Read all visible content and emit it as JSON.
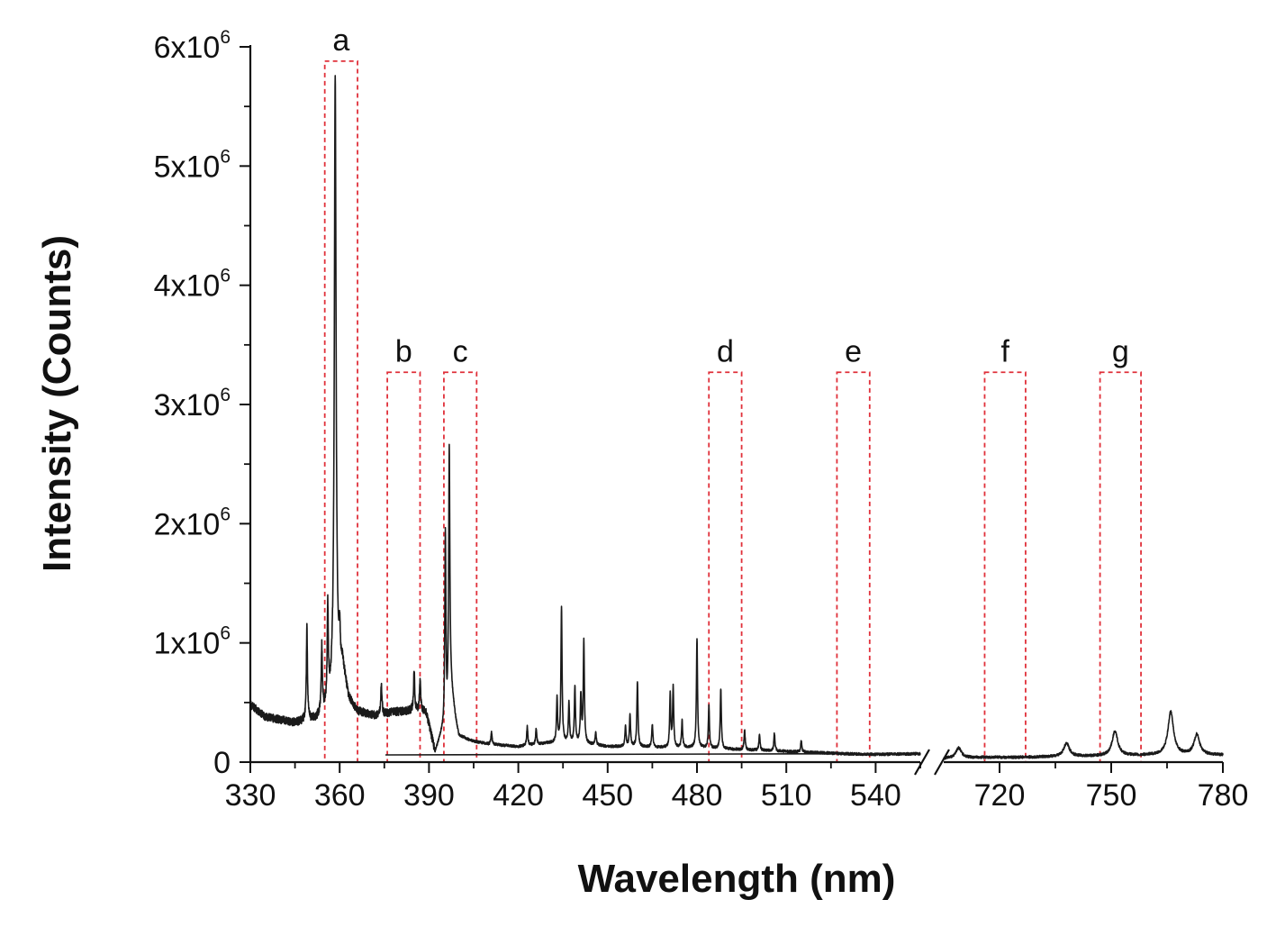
{
  "chart_data": {
    "type": "line",
    "title": "",
    "xlabel": "Wavelength (nm)",
    "ylabel": "Intensity (Counts)",
    "ylim": [
      0,
      6000000
    ],
    "axis_break": {
      "from": 555,
      "to": 705
    },
    "xlim_segments": [
      [
        330,
        555
      ],
      [
        705,
        780
      ]
    ],
    "x_ticks": [
      "330",
      "360",
      "390",
      "420",
      "450",
      "480",
      "510",
      "540",
      "720",
      "750",
      "780"
    ],
    "y_ticks": [
      {
        "value": 0,
        "mantissa": "0",
        "exponent": ""
      },
      {
        "value": 1000000,
        "mantissa": "1x10",
        "exponent": "6"
      },
      {
        "value": 2000000,
        "mantissa": "2x10",
        "exponent": "6"
      },
      {
        "value": 3000000,
        "mantissa": "3x10",
        "exponent": "6"
      },
      {
        "value": 4000000,
        "mantissa": "4x10",
        "exponent": "6"
      },
      {
        "value": 5000000,
        "mantissa": "5x10",
        "exponent": "6"
      },
      {
        "value": 6000000,
        "mantissa": "6x10",
        "exponent": "6"
      }
    ],
    "highlight_regions": [
      {
        "label": "a",
        "x_start": 355,
        "x_end": 366,
        "y_top": 5880000
      },
      {
        "label": "b",
        "x_start": 376,
        "x_end": 387,
        "y_top": 3270000
      },
      {
        "label": "c",
        "x_start": 395,
        "x_end": 406,
        "y_top": 3270000
      },
      {
        "label": "d",
        "x_start": 484,
        "x_end": 495,
        "y_top": 3270000
      },
      {
        "label": "e",
        "x_start": 527,
        "x_end": 538,
        "y_top": 3270000
      },
      {
        "label": "f",
        "x_start": 716,
        "x_end": 727,
        "y_top": 3270000
      },
      {
        "label": "g",
        "x_start": 747,
        "x_end": 758,
        "y_top": 3270000
      }
    ],
    "series": [
      {
        "baseline": [
          [
            330,
            480000
          ],
          [
            335,
            380000
          ],
          [
            345,
            330000
          ],
          [
            352,
            360000
          ],
          [
            356,
            450000
          ],
          [
            358,
            600000
          ],
          [
            361,
            800000
          ],
          [
            363,
            530000
          ],
          [
            366,
            420000
          ],
          [
            372,
            390000
          ],
          [
            378,
            420000
          ],
          [
            385,
            430000
          ],
          [
            389,
            420000
          ],
          [
            391,
            200000
          ],
          [
            392,
            80000
          ],
          [
            394,
            220000
          ],
          [
            396,
            300000
          ],
          [
            397,
            700000
          ],
          [
            399,
            350000
          ],
          [
            400,
            220000
          ],
          [
            404,
            180000
          ],
          [
            410,
            150000
          ],
          [
            420,
            130000
          ],
          [
            430,
            160000
          ],
          [
            440,
            160000
          ],
          [
            450,
            130000
          ],
          [
            460,
            130000
          ],
          [
            470,
            120000
          ],
          [
            480,
            120000
          ],
          [
            490,
            110000
          ],
          [
            500,
            100000
          ],
          [
            510,
            90000
          ],
          [
            520,
            80000
          ],
          [
            530,
            70000
          ],
          [
            540,
            65000
          ],
          [
            555,
            70000
          ],
          [
            705,
            30000
          ],
          [
            715,
            40000
          ],
          [
            725,
            40000
          ],
          [
            735,
            45000
          ],
          [
            745,
            50000
          ],
          [
            755,
            55000
          ],
          [
            765,
            60000
          ],
          [
            775,
            60000
          ],
          [
            780,
            60000
          ]
        ],
        "peaks": [
          [
            349,
            1120000
          ],
          [
            354,
            950000
          ],
          [
            356,
            1270000
          ],
          [
            358.5,
            5750000
          ],
          [
            360,
            1000000
          ],
          [
            374,
            650000
          ],
          [
            385,
            780000
          ],
          [
            387,
            700000
          ],
          [
            395.5,
            1900000
          ],
          [
            396.8,
            2620000
          ],
          [
            411,
            250000
          ],
          [
            423,
            300000
          ],
          [
            426,
            280000
          ],
          [
            433,
            530000
          ],
          [
            434.5,
            1300000
          ],
          [
            437,
            500000
          ],
          [
            439,
            630000
          ],
          [
            441,
            550000
          ],
          [
            442,
            1010000
          ],
          [
            446,
            250000
          ],
          [
            456,
            300000
          ],
          [
            457.5,
            400000
          ],
          [
            460,
            680000
          ],
          [
            465,
            320000
          ],
          [
            471,
            560000
          ],
          [
            472,
            620000
          ],
          [
            475,
            350000
          ],
          [
            480,
            1040000
          ],
          [
            484,
            470000
          ],
          [
            488,
            620000
          ],
          [
            496,
            270000
          ],
          [
            501,
            230000
          ],
          [
            506,
            240000
          ],
          [
            515,
            180000
          ],
          [
            709,
            120000
          ],
          [
            738,
            160000
          ],
          [
            751,
            260000
          ],
          [
            766,
            420000
          ],
          [
            773,
            230000
          ]
        ]
      }
    ]
  }
}
